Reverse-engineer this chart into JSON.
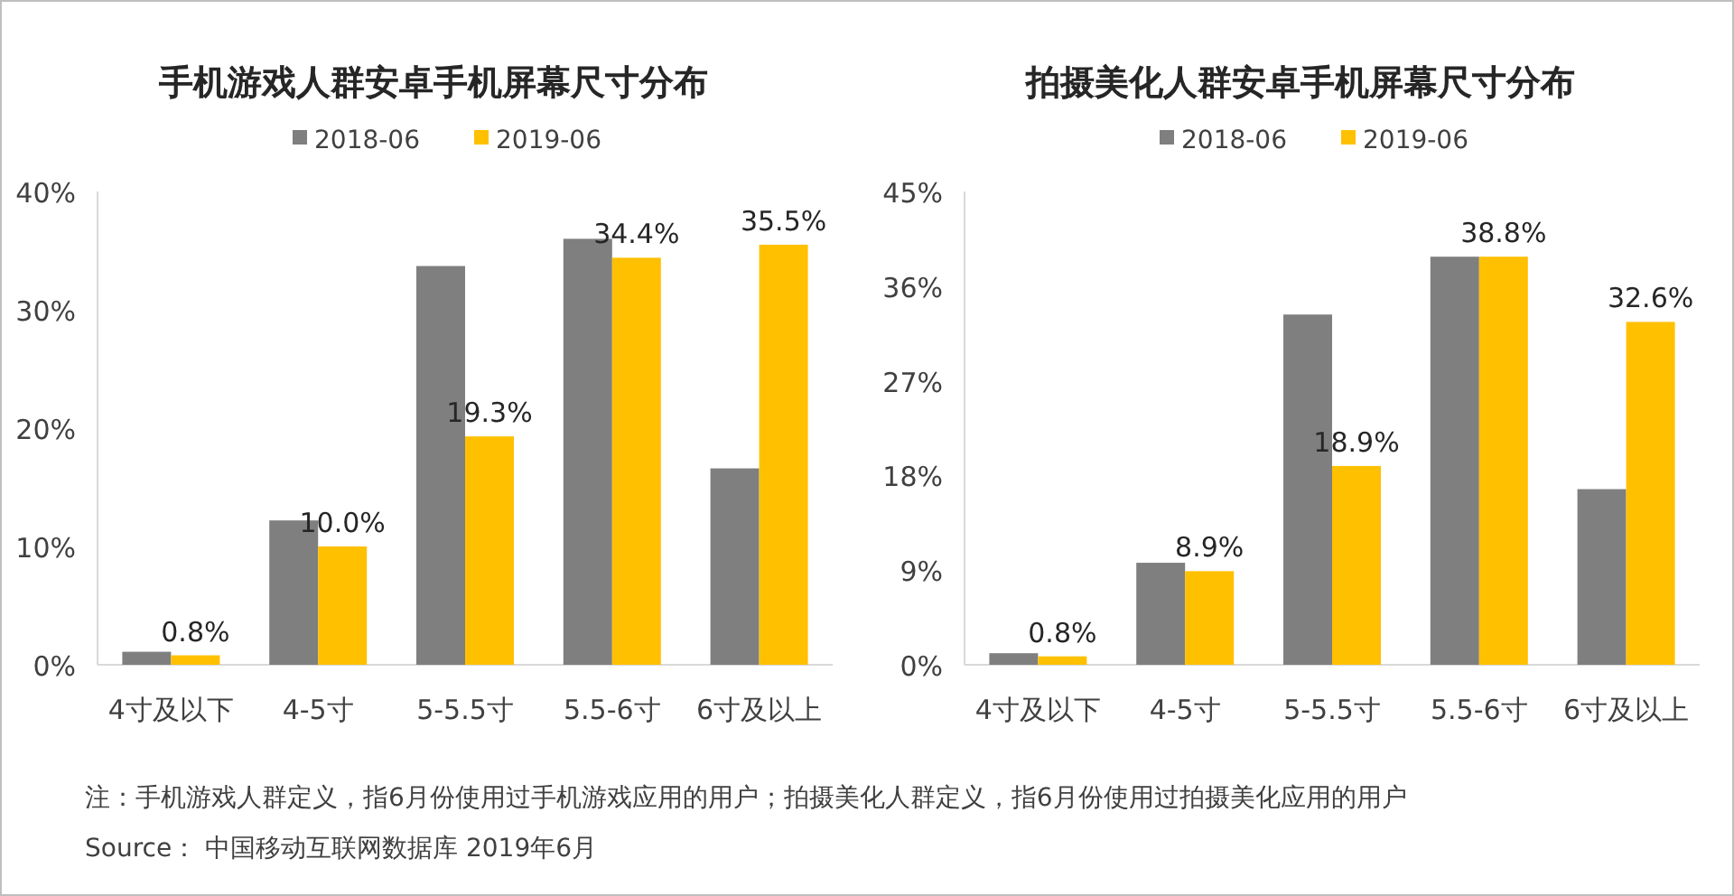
{
  "chart_data": [
    {
      "type": "bar",
      "title": "手机游戏人群安卓手机屏幕尺寸分布",
      "categories": [
        "4寸及以下",
        "4-5寸",
        "5-5.5寸",
        "5.5-6寸",
        "6寸及以上"
      ],
      "series": [
        {
          "name": "2018-06",
          "color": "#7f7f7f",
          "values": [
            1.1,
            12.2,
            33.7,
            36.0,
            16.6
          ]
        },
        {
          "name": "2019-06",
          "color": "#ffc000",
          "values": [
            0.8,
            10.0,
            19.3,
            34.4,
            35.5
          ],
          "value_labels": [
            "0.8%",
            "10.0%",
            "19.3%",
            "34.4%",
            "35.5%"
          ]
        }
      ],
      "ylim": [
        0,
        40
      ],
      "yticks": [
        {
          "value": 0,
          "label": "0%"
        },
        {
          "value": 10,
          "label": "10%"
        },
        {
          "value": 20,
          "label": "20%"
        },
        {
          "value": 30,
          "label": "30%"
        },
        {
          "value": 40,
          "label": "40%"
        }
      ],
      "legend": "top",
      "annotations": [
        "注：手机游戏人群定义，指6月份使用过手机游戏应用的用户；拍摄美化人群定义，指6月份使用过拍摄美化应用的用户",
        "Source： 中国移动互联网数据库 2019年6月"
      ]
    },
    {
      "type": "bar",
      "title": "拍摄美化人群安卓手机屏幕尺寸分布",
      "categories": [
        "4寸及以下",
        "4-5寸",
        "5-5.5寸",
        "5.5-6寸",
        "6寸及以上"
      ],
      "series": [
        {
          "name": "2018-06",
          "color": "#7f7f7f",
          "values": [
            1.1,
            9.7,
            33.3,
            38.8,
            16.7
          ]
        },
        {
          "name": "2019-06",
          "color": "#ffc000",
          "values": [
            0.8,
            8.9,
            18.9,
            38.8,
            32.6
          ],
          "value_labels": [
            "0.8%",
            "8.9%",
            "18.9%",
            "38.8%",
            "32.6%"
          ]
        }
      ],
      "ylim": [
        0,
        45
      ],
      "yticks": [
        {
          "value": 0,
          "label": "0%"
        },
        {
          "value": 9,
          "label": "9%"
        },
        {
          "value": 18,
          "label": "18%"
        },
        {
          "value": 27,
          "label": "27%"
        },
        {
          "value": 36,
          "label": "36%"
        },
        {
          "value": 45,
          "label": "45%"
        }
      ],
      "legend": "top"
    }
  ]
}
